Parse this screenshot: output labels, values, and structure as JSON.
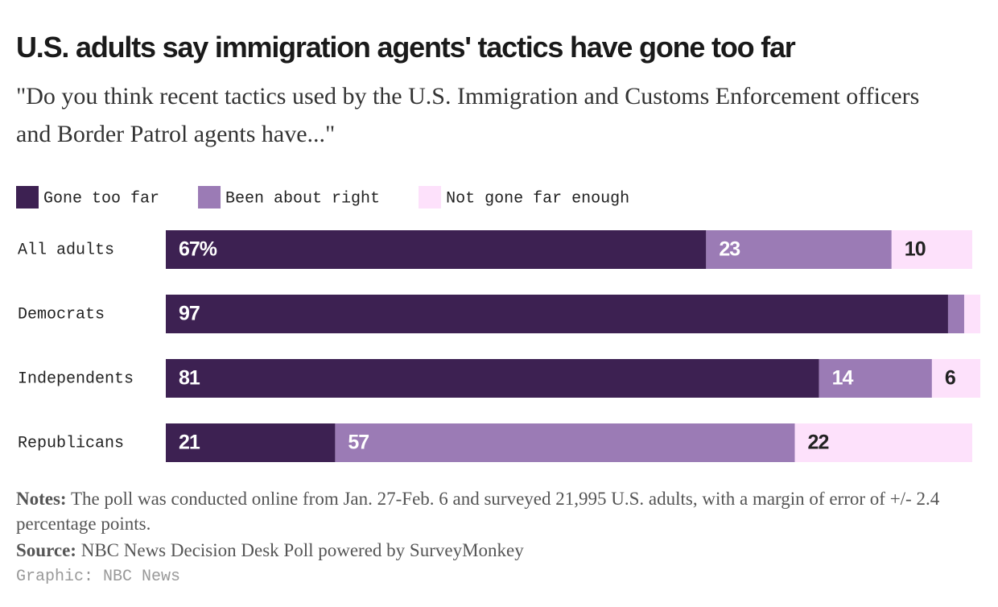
{
  "chart_data": {
    "type": "stacked-bar-horizontal",
    "title": "U.S. adults say immigration agents' tactics have gone too far",
    "subtitle": "\"Do you think recent tactics used by the U.S. Immigration and Customs Enforcement officers and Border Patrol agents have...\"",
    "categories": [
      "All adults",
      "Democrats",
      "Independents",
      "Republicans"
    ],
    "series": [
      {
        "name": "Gone too far",
        "color": "#3d2152",
        "values": [
          67,
          97,
          81,
          21
        ],
        "value_labels": [
          "67%",
          "97",
          "81",
          "21"
        ]
      },
      {
        "name": "Been about right",
        "color": "#9b7bb5",
        "values": [
          23,
          2,
          14,
          57
        ]
      },
      {
        "name": "Not gone far enough",
        "color": "#fde1fb",
        "values": [
          10,
          2,
          6,
          22
        ]
      }
    ],
    "xlim": [
      0,
      100
    ],
    "notes": {
      "label": "Notes:",
      "text": "The poll was conducted online from Jan. 27-Feb. 6 and surveyed 21,995 U.S. adults, with a margin of error of +/- 2.4 percentage points."
    },
    "source": {
      "label": "Source:",
      "text": "NBC News Decision Desk Poll powered by SurveyMonkey"
    },
    "credit": "Graphic: NBC News"
  }
}
